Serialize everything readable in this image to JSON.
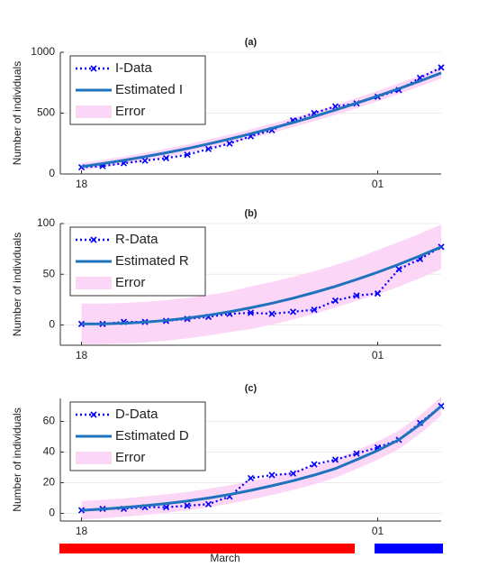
{
  "chart_data": [
    {
      "type": "line",
      "title": "(a)",
      "y_label": "Number of individuals",
      "categories": [
        "18",
        null,
        null,
        null,
        null,
        null,
        null,
        null,
        null,
        null,
        null,
        null,
        null,
        null,
        "01",
        null,
        null,
        null
      ],
      "ylim": [
        0,
        1000
      ],
      "yticks": [
        0,
        500,
        1000
      ],
      "grid": true,
      "legend": "upper left",
      "series": [
        {
          "name": "I-Data",
          "color": "#0000ff",
          "style": "dotted",
          "marker": "x",
          "values": [
            55,
            65,
            88,
            110,
            130,
            158,
            205,
            250,
            310,
            360,
            440,
            500,
            555,
            580,
            635,
            690,
            790,
            875
          ]
        },
        {
          "name": "Estimated I",
          "color": "#1f72bd",
          "style": "solid",
          "values": [
            60,
            85,
            112,
            142,
            174,
            209,
            247,
            287,
            330,
            375,
            423,
            473,
            526,
            582,
            640,
            701,
            764,
            830
          ]
        },
        {
          "name": "Error",
          "color": "#fcd6f6",
          "style": "band",
          "values": [
            30,
            30,
            31,
            32,
            33,
            34,
            35,
            36,
            37,
            38,
            39,
            40,
            41,
            42,
            43,
            44,
            45,
            46
          ]
        }
      ]
    },
    {
      "type": "line",
      "title": "(b)",
      "y_label": "Number of individuals",
      "categories": [
        "18",
        null,
        null,
        null,
        null,
        null,
        null,
        null,
        null,
        null,
        null,
        null,
        null,
        null,
        "01",
        null,
        null,
        null
      ],
      "ylim": [
        -20,
        100
      ],
      "yticks": [
        0,
        50,
        100
      ],
      "grid": true,
      "legend": "upper left",
      "series": [
        {
          "name": "R-Data",
          "color": "#0000ff",
          "style": "dotted",
          "marker": "x",
          "values": [
            1,
            1,
            3,
            3,
            4,
            6,
            8,
            11,
            12,
            11,
            13,
            15,
            24,
            29,
            31,
            55,
            65,
            77
          ]
        },
        {
          "name": "Estimated R",
          "color": "#1f72bd",
          "style": "solid",
          "values": [
            1,
            1.1,
            1.7,
            2.8,
            4.5,
            6.8,
            9.6,
            13,
            17,
            21.4,
            26.4,
            32,
            38.1,
            44.8,
            52,
            59.8,
            68.1,
            77
          ]
        },
        {
          "name": "Error",
          "color": "#fcd6f6",
          "style": "band",
          "values": [
            20,
            20,
            20,
            20,
            20,
            20,
            20,
            20,
            21,
            21,
            21,
            21,
            21,
            21,
            22,
            22,
            22,
            22
          ]
        }
      ]
    },
    {
      "type": "line",
      "title": "(c)",
      "y_label": "Number of individuals",
      "categories": [
        "18",
        null,
        null,
        null,
        null,
        null,
        null,
        null,
        null,
        null,
        null,
        null,
        null,
        null,
        "01",
        null,
        null,
        null
      ],
      "ylim": [
        -5,
        75
      ],
      "yticks": [
        0,
        20,
        40,
        60
      ],
      "grid": true,
      "legend": "upper left",
      "series": [
        {
          "name": "D-Data",
          "color": "#0000ff",
          "style": "dotted",
          "marker": "x",
          "values": [
            2,
            3,
            3,
            4,
            4,
            5,
            6,
            11,
            23,
            25,
            26,
            32,
            35,
            39,
            43,
            48,
            59,
            70
          ]
        },
        {
          "name": "Estimated D",
          "color": "#1f72bd",
          "style": "solid",
          "values": [
            2,
            2.8,
            3.8,
            5,
            6.4,
            8,
            10,
            12.3,
            15,
            18,
            21.3,
            25,
            29.2,
            35,
            41,
            48,
            58,
            70
          ]
        },
        {
          "name": "Error",
          "color": "#fcd6f6",
          "style": "band",
          "values": [
            6,
            6,
            6,
            6,
            6,
            6,
            6,
            6,
            6,
            6,
            6,
            6,
            6,
            6,
            6,
            6,
            6,
            6
          ]
        }
      ]
    }
  ],
  "footer": {
    "label": "March"
  }
}
